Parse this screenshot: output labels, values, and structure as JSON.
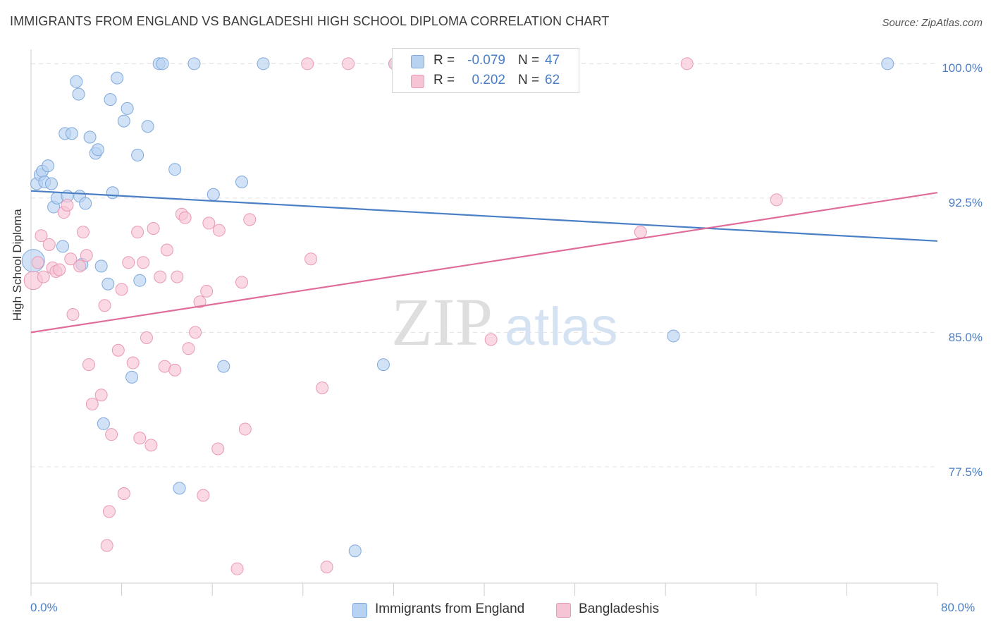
{
  "title": "IMMIGRANTS FROM ENGLAND VS BANGLADESHI HIGH SCHOOL DIPLOMA CORRELATION CHART",
  "source": "Source: ZipAtlas.com",
  "watermark": {
    "zip": "ZIP",
    "atlas": "atlas"
  },
  "colors": {
    "blue": "#4a7fc6",
    "blue_fill": "#b8d2f2",
    "pink": "#e06c9a",
    "pink_fill": "#f7c4d5",
    "grid": "#e3e3e3"
  },
  "legend_top": {
    "rows": [
      {
        "r_label": "R =",
        "r_value": "-0.079",
        "n_label": "N =",
        "n_value": "47"
      },
      {
        "r_label": "R =",
        "r_value": "0.202",
        "n_label": "N =",
        "n_value": "62"
      }
    ]
  },
  "chart_data": {
    "type": "scatter",
    "title": "IMMIGRANTS FROM ENGLAND VS BANGLADESHI HIGH SCHOOL DIPLOMA CORRELATION CHART",
    "xlabel": "",
    "ylabel": "High School Diploma",
    "xlim": [
      0,
      80
    ],
    "ylim": [
      71,
      100.8
    ],
    "x_tick_labels": [
      "0.0%",
      "80.0%"
    ],
    "y_ticks": [
      77.5,
      85.0,
      92.5,
      100.0
    ],
    "y_tick_labels": [
      "77.5%",
      "85.0%",
      "92.5%",
      "100.0%"
    ],
    "grid": true,
    "legend_position": "bottom-center",
    "series": [
      {
        "name": "Immigrants from England",
        "color": "#4a7fc6",
        "trend": {
          "x": [
            0,
            80
          ],
          "y": [
            92.9,
            90.1
          ]
        },
        "points": [
          [
            0.2,
            89.0
          ],
          [
            0.5,
            93.3
          ],
          [
            0.8,
            93.8
          ],
          [
            1.0,
            94.0
          ],
          [
            1.2,
            93.4
          ],
          [
            1.5,
            94.3
          ],
          [
            1.8,
            93.3
          ],
          [
            2.0,
            92.0
          ],
          [
            2.3,
            92.5
          ],
          [
            2.8,
            89.8
          ],
          [
            3.0,
            96.1
          ],
          [
            3.2,
            92.6
          ],
          [
            3.6,
            96.1
          ],
          [
            4.0,
            99.0
          ],
          [
            4.2,
            98.3
          ],
          [
            4.3,
            92.6
          ],
          [
            4.5,
            88.8
          ],
          [
            4.8,
            92.2
          ],
          [
            5.2,
            95.9
          ],
          [
            5.7,
            95.0
          ],
          [
            5.9,
            95.2
          ],
          [
            6.2,
            88.7
          ],
          [
            6.4,
            79.9
          ],
          [
            6.8,
            87.7
          ],
          [
            7.0,
            98.0
          ],
          [
            7.2,
            92.8
          ],
          [
            7.6,
            99.2
          ],
          [
            8.2,
            96.8
          ],
          [
            8.5,
            97.5
          ],
          [
            8.9,
            82.5
          ],
          [
            9.4,
            94.9
          ],
          [
            9.6,
            87.9
          ],
          [
            10.3,
            96.5
          ],
          [
            11.3,
            100.0
          ],
          [
            11.6,
            100.0
          ],
          [
            12.7,
            94.1
          ],
          [
            13.1,
            76.3
          ],
          [
            14.4,
            100.0
          ],
          [
            16.1,
            92.7
          ],
          [
            17.0,
            83.1
          ],
          [
            18.6,
            93.4
          ],
          [
            20.5,
            100.0
          ],
          [
            28.6,
            72.8
          ],
          [
            31.1,
            83.2
          ],
          [
            32.1,
            100.0
          ],
          [
            56.7,
            84.8
          ],
          [
            75.6,
            100.0
          ]
        ]
      },
      {
        "name": "Bangladeshis",
        "color": "#e06c9a",
        "trend": {
          "x": [
            0,
            80
          ],
          "y": [
            85.0,
            92.8
          ]
        },
        "points": [
          [
            0.2,
            87.9
          ],
          [
            0.6,
            88.9
          ],
          [
            0.9,
            90.4
          ],
          [
            1.1,
            88.1
          ],
          [
            1.6,
            89.9
          ],
          [
            1.9,
            88.6
          ],
          [
            2.2,
            88.4
          ],
          [
            2.5,
            88.5
          ],
          [
            2.9,
            91.7
          ],
          [
            3.2,
            92.1
          ],
          [
            3.5,
            89.1
          ],
          [
            3.7,
            86.0
          ],
          [
            4.3,
            88.7
          ],
          [
            4.6,
            90.6
          ],
          [
            4.9,
            89.3
          ],
          [
            5.1,
            83.2
          ],
          [
            5.4,
            81.0
          ],
          [
            6.2,
            81.5
          ],
          [
            6.5,
            86.5
          ],
          [
            6.9,
            75.0
          ],
          [
            6.7,
            73.1
          ],
          [
            7.1,
            79.3
          ],
          [
            7.7,
            84.0
          ],
          [
            8.0,
            87.4
          ],
          [
            8.2,
            76.0
          ],
          [
            8.6,
            88.9
          ],
          [
            9.0,
            83.3
          ],
          [
            9.4,
            90.6
          ],
          [
            9.6,
            79.1
          ],
          [
            9.9,
            88.9
          ],
          [
            10.2,
            84.7
          ],
          [
            10.6,
            78.7
          ],
          [
            10.8,
            90.8
          ],
          [
            11.4,
            88.1
          ],
          [
            11.8,
            83.1
          ],
          [
            12.0,
            89.6
          ],
          [
            12.7,
            82.9
          ],
          [
            12.9,
            88.1
          ],
          [
            13.3,
            91.6
          ],
          [
            13.6,
            91.4
          ],
          [
            13.9,
            84.1
          ],
          [
            14.5,
            85.0
          ],
          [
            14.9,
            86.7
          ],
          [
            15.2,
            75.9
          ],
          [
            15.5,
            87.3
          ],
          [
            15.7,
            91.1
          ],
          [
            16.5,
            78.5
          ],
          [
            16.6,
            90.7
          ],
          [
            18.2,
            71.8
          ],
          [
            18.6,
            87.8
          ],
          [
            18.9,
            79.6
          ],
          [
            19.3,
            91.3
          ],
          [
            24.4,
            100.0
          ],
          [
            24.7,
            89.1
          ],
          [
            25.7,
            81.9
          ],
          [
            26.1,
            71.9
          ],
          [
            28.0,
            100.0
          ],
          [
            32.1,
            100.0
          ],
          [
            40.6,
            84.6
          ],
          [
            53.8,
            90.6
          ],
          [
            57.9,
            100.0
          ],
          [
            65.8,
            92.4
          ]
        ]
      }
    ]
  }
}
